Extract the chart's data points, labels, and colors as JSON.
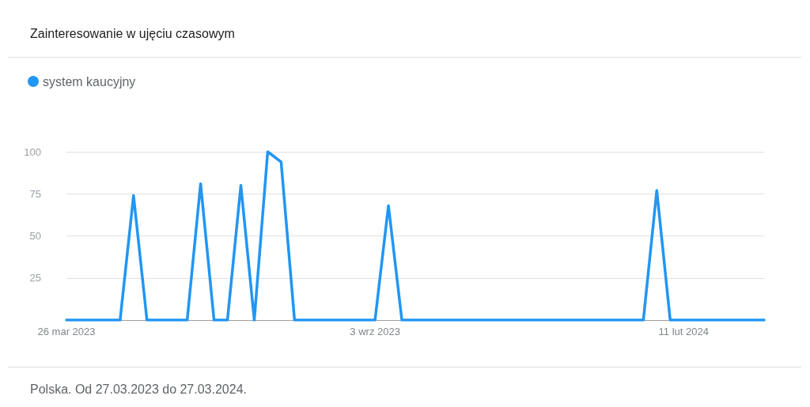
{
  "chart_data": {
    "type": "line",
    "title": "Zainteresowanie w ujęciu czasowym",
    "annotations": [
      "Polska. Od 27.03.2023 do 27.03.2024."
    ],
    "x": [
      "2023-03-26",
      "2023-04-02",
      "2023-04-09",
      "2023-04-16",
      "2023-04-23",
      "2023-04-30",
      "2023-05-07",
      "2023-05-14",
      "2023-05-21",
      "2023-05-28",
      "2023-06-04",
      "2023-06-11",
      "2023-06-18",
      "2023-06-25",
      "2023-07-02",
      "2023-07-09",
      "2023-07-16",
      "2023-07-23",
      "2023-07-30",
      "2023-08-06",
      "2023-08-13",
      "2023-08-20",
      "2023-08-27",
      "2023-09-03",
      "2023-09-10",
      "2023-09-17",
      "2023-09-24",
      "2023-10-01",
      "2023-10-08",
      "2023-10-15",
      "2023-10-22",
      "2023-10-29",
      "2023-11-05",
      "2023-11-12",
      "2023-11-19",
      "2023-11-26",
      "2023-12-03",
      "2023-12-10",
      "2023-12-17",
      "2023-12-24",
      "2023-12-31",
      "2024-01-07",
      "2024-01-14",
      "2024-01-21",
      "2024-01-28",
      "2024-02-04",
      "2024-02-11",
      "2024-02-18",
      "2024-02-25",
      "2024-03-03",
      "2024-03-10",
      "2024-03-17",
      "2024-03-24"
    ],
    "series": [
      {
        "name": "system kaucyjny",
        "color": "#2196f3",
        "values": [
          0,
          0,
          0,
          0,
          0,
          74,
          0,
          0,
          0,
          0,
          81,
          0,
          0,
          80,
          0,
          100,
          94,
          0,
          0,
          0,
          0,
          0,
          0,
          0,
          68,
          0,
          0,
          0,
          0,
          0,
          0,
          0,
          0,
          0,
          0,
          0,
          0,
          0,
          0,
          0,
          0,
          0,
          0,
          0,
          77,
          0,
          0,
          0,
          0,
          0,
          0,
          0,
          0
        ]
      }
    ],
    "xlim": [
      "2023-03-26",
      "2024-03-24"
    ],
    "xticks": [
      {
        "value": "2023-03-26",
        "label": "26 mar 2023"
      },
      {
        "value": "2023-09-03",
        "label": "3 wrz 2023"
      },
      {
        "value": "2024-02-11",
        "label": "11 lut 2024"
      }
    ],
    "ylim": [
      0,
      100
    ],
    "yticks": [
      25,
      50,
      75,
      100
    ],
    "grid": "y",
    "legend": "top left",
    "marker": "none",
    "line_style": "solid"
  }
}
